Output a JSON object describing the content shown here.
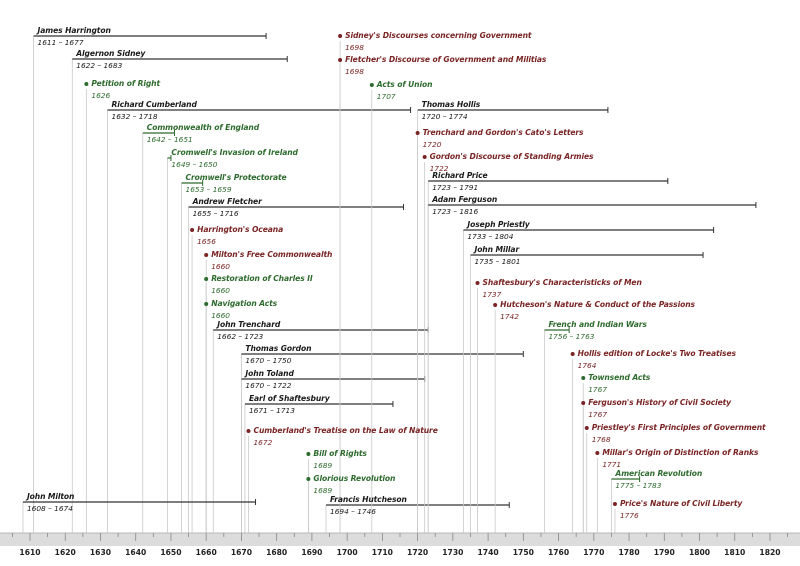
{
  "chart_data": {
    "type": "timeline",
    "axis": {
      "min": 1604,
      "max": 1825,
      "ticks": [
        1610,
        1620,
        1630,
        1640,
        1650,
        1660,
        1670,
        1680,
        1690,
        1700,
        1710,
        1720,
        1730,
        1740,
        1750,
        1760,
        1770,
        1780,
        1790,
        1800,
        1810,
        1820
      ]
    },
    "colors": {
      "person": "#1a1a1a",
      "political": "#2e6b2e",
      "work": "#7a2424",
      "axis_band": "#dcdcdc",
      "guide": "#c8c8c8"
    },
    "events": [
      {
        "id": "harrington",
        "kind": "person",
        "label": "James Harrington",
        "dates": "1611 – 1677",
        "start": 1611,
        "end": 1677
      },
      {
        "id": "sidney",
        "kind": "person",
        "label": "Algernon Sidney",
        "dates": "1622 – 1683",
        "start": 1622,
        "end": 1683
      },
      {
        "id": "petition",
        "kind": "political",
        "label": "Petition of Right",
        "dates": "1626",
        "start": 1626
      },
      {
        "id": "cumberland",
        "kind": "person",
        "label": "Richard Cumberland",
        "dates": "1632 – 1718",
        "start": 1632,
        "end": 1718
      },
      {
        "id": "commonwealth",
        "kind": "political",
        "label": "Commonwealth of England",
        "dates": "1642 – 1651",
        "start": 1642,
        "end": 1651
      },
      {
        "id": "ireland",
        "kind": "political",
        "label": "Cromwell's Invasion of Ireland",
        "dates": "1649 – 1650",
        "start": 1649,
        "end": 1650
      },
      {
        "id": "protectorate",
        "kind": "political",
        "label": "Cromwell's Protectorate",
        "dates": "1653 – 1659",
        "start": 1653,
        "end": 1659
      },
      {
        "id": "fletcher",
        "kind": "person",
        "label": "Andrew Fletcher",
        "dates": "1655 – 1716",
        "start": 1655,
        "end": 1716
      },
      {
        "id": "oceana",
        "kind": "work",
        "label": "Harrington's Oceana",
        "dates": "1656",
        "start": 1656
      },
      {
        "id": "milton_free",
        "kind": "work",
        "label": "Milton's Free Commonwealth",
        "dates": "1660",
        "start": 1660
      },
      {
        "id": "restoration",
        "kind": "political",
        "label": "Restoration of Charles II",
        "dates": "1660",
        "start": 1660
      },
      {
        "id": "navigation",
        "kind": "political",
        "label": "Navigation Acts",
        "dates": "1660",
        "start": 1660
      },
      {
        "id": "trenchard",
        "kind": "person",
        "label": "John Trenchard",
        "dates": "1662 – 1723",
        "start": 1662,
        "end": 1723
      },
      {
        "id": "gordon",
        "kind": "person",
        "label": "Thomas Gordon",
        "dates": "1670 – 1750",
        "start": 1670,
        "end": 1750
      },
      {
        "id": "toland",
        "kind": "person",
        "label": "John Toland",
        "dates": "1670 – 1722",
        "start": 1670,
        "end": 1722
      },
      {
        "id": "shaftesbury",
        "kind": "person",
        "label": "Earl of Shaftesbury",
        "dates": "1671 – 1713",
        "start": 1671,
        "end": 1713
      },
      {
        "id": "cumb_treatise",
        "kind": "work",
        "label": "Cumberland's Treatise on the Law of Nature",
        "dates": "1672",
        "start": 1672
      },
      {
        "id": "bill_rights",
        "kind": "political",
        "label": "Bill of Rights",
        "dates": "1689",
        "start": 1689
      },
      {
        "id": "glorious",
        "kind": "political",
        "label": "Glorious Revolution",
        "dates": "1689",
        "start": 1689
      },
      {
        "id": "milton",
        "kind": "person",
        "label": "John Milton",
        "dates": "1608 – 1674",
        "start": 1608,
        "end": 1674
      },
      {
        "id": "hutcheson",
        "kind": "person",
        "label": "Francis Hutcheson",
        "dates": "1694 – 1746",
        "start": 1694,
        "end": 1746
      },
      {
        "id": "sidney_disc",
        "kind": "work",
        "label": "Sidney's Discourses concerning Government",
        "dates": "1698",
        "start": 1698
      },
      {
        "id": "fletcher_disc",
        "kind": "work",
        "label": "Fletcher's Discourse of Government and Militias",
        "dates": "1698",
        "start": 1698
      },
      {
        "id": "union",
        "kind": "political",
        "label": "Acts of Union",
        "dates": "1707",
        "start": 1707
      },
      {
        "id": "hollis",
        "kind": "person",
        "label": "Thomas Hollis",
        "dates": "1720 – 1774",
        "start": 1720,
        "end": 1774
      },
      {
        "id": "catos",
        "kind": "work",
        "label": "Trenchard and Gordon's Cato's Letters",
        "dates": "1720",
        "start": 1720
      },
      {
        "id": "standing",
        "kind": "work",
        "label": "Gordon's Discourse of Standing Armies",
        "dates": "1722",
        "start": 1722
      },
      {
        "id": "price",
        "kind": "person",
        "label": "Richard Price",
        "dates": "1723 – 1791",
        "start": 1723,
        "end": 1791
      },
      {
        "id": "ferguson",
        "kind": "person",
        "label": "Adam Ferguson",
        "dates": "1723 – 1816",
        "start": 1723,
        "end": 1816
      },
      {
        "id": "priestly",
        "kind": "person",
        "label": "Joseph Priestly",
        "dates": "1733 – 1804",
        "start": 1733,
        "end": 1804
      },
      {
        "id": "millar",
        "kind": "person",
        "label": "John Millar",
        "dates": "1735 – 1801",
        "start": 1735,
        "end": 1801
      },
      {
        "id": "shaft_char",
        "kind": "work",
        "label": "Shaftesbury's Characteristicks of Men",
        "dates": "1737",
        "start": 1737
      },
      {
        "id": "hutch_nature",
        "kind": "work",
        "label": "Hutcheson's Nature & Conduct of the Passions",
        "dates": "1742",
        "start": 1742
      },
      {
        "id": "french_indian",
        "kind": "political",
        "label": "French and Indian Wars",
        "dates": "1756 – 1763",
        "start": 1756,
        "end": 1763
      },
      {
        "id": "hollis_locke",
        "kind": "work",
        "label": "Hollis edition of Locke's Two Treatises",
        "dates": "1764",
        "start": 1764
      },
      {
        "id": "townsend",
        "kind": "political",
        "label": "Townsend Acts",
        "dates": "1767",
        "start": 1767
      },
      {
        "id": "ferg_history",
        "kind": "work",
        "label": "Ferguson's History of Civil Society",
        "dates": "1767",
        "start": 1767
      },
      {
        "id": "priestley_first",
        "kind": "work",
        "label": "Priestley's First Principles of Government",
        "dates": "1768",
        "start": 1768
      },
      {
        "id": "millar_origin",
        "kind": "work",
        "label": "Millar's Origin of Distinction of Ranks",
        "dates": "1771",
        "start": 1771
      },
      {
        "id": "american_rev",
        "kind": "political",
        "label": "American Revolution",
        "dates": "1775 – 1783",
        "start": 1775,
        "end": 1783
      },
      {
        "id": "price_nature",
        "kind": "work",
        "label": "Price's Nature of Civil Liberty",
        "dates": "1776",
        "start": 1776
      }
    ]
  }
}
